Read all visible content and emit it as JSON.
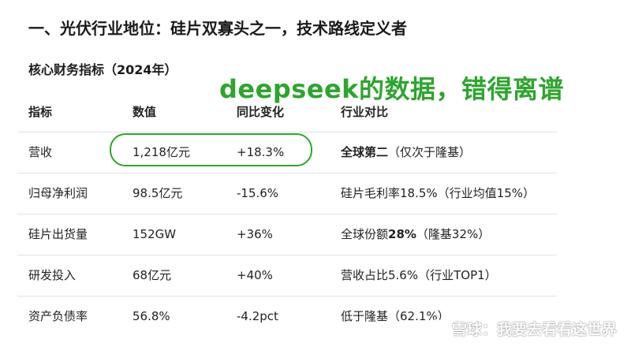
{
  "heading": "一、光伏行业地位：硅片双寡头之一，技术路线定义者",
  "section_title": "核心财务指标（2024年）",
  "annotation": "deepseek的数据，错得离谱",
  "table": {
    "headers": [
      "指标",
      "数值",
      "同比变化",
      "行业对比"
    ],
    "rows": [
      {
        "metric": "营收",
        "value": "1,218亿元",
        "change": "+18.3%",
        "compare_bold": "全球第二",
        "compare_rest": "（仅次于隆基）"
      },
      {
        "metric": "归母净利润",
        "value": "98.5亿元",
        "change": "-15.6%",
        "compare_pre": "硅片毛利率18.5%（行业均值15%）"
      },
      {
        "metric": "硅片出货量",
        "value": "152GW",
        "change": "+36%",
        "compare_pre": "全球份额",
        "compare_bold": "28%",
        "compare_rest": "（隆基32%）"
      },
      {
        "metric": "研发投入",
        "value": "68亿元",
        "change": "+40%",
        "compare_pre": "营收占比5.6%（行业TOP1）"
      },
      {
        "metric": "资产负债率",
        "value": "56.8%",
        "change": "-4.2pct",
        "compare_pre": "低于隆基（62.1%）"
      }
    ]
  },
  "watermark": {
    "text": "雪球：我要去看看这世界",
    "icon": "snowball-logo-icon"
  },
  "colors": {
    "annotation": "#2ea52e",
    "divider": "#e3e3e3"
  }
}
